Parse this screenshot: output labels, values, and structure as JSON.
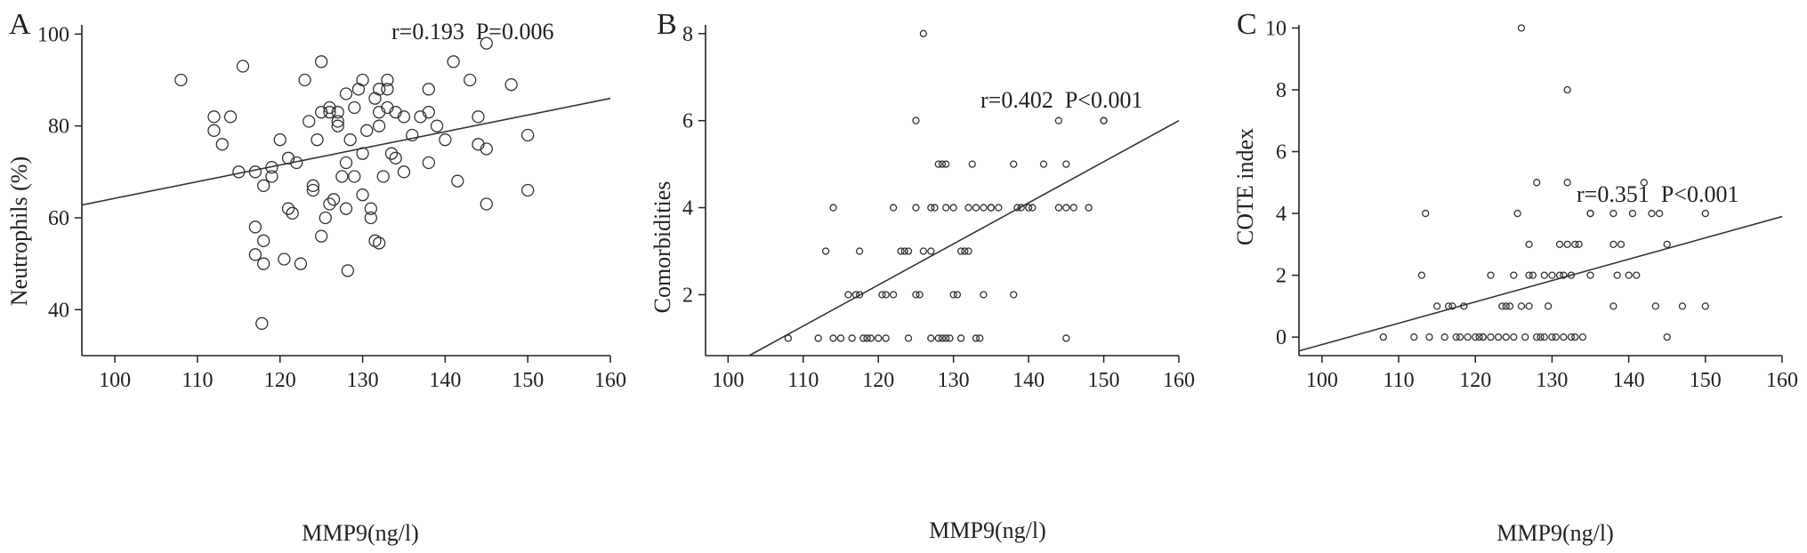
{
  "chart_data": [
    {
      "panel": "A",
      "type": "scatter",
      "xlabel": "MMP9(ng/l)",
      "ylabel": "Neutrophils (%)",
      "xlim": [
        96,
        160
      ],
      "ylim": [
        30,
        102
      ],
      "x_ticks": [
        "100",
        "110",
        "120",
        "130",
        "140",
        "150",
        "160"
      ],
      "y_ticks": [
        "40",
        "60",
        "80",
        "100"
      ],
      "annotation": "r=0.193  P=0.006",
      "trendline": [
        [
          96,
          62.8
        ],
        [
          160,
          86.0
        ]
      ],
      "points": [
        [
          108,
          90
        ],
        [
          112,
          79
        ],
        [
          112,
          82
        ],
        [
          113,
          76
        ],
        [
          114,
          82
        ],
        [
          115,
          70
        ],
        [
          115.5,
          93
        ],
        [
          117,
          70
        ],
        [
          117,
          58
        ],
        [
          117,
          52
        ],
        [
          118,
          67
        ],
        [
          118,
          50
        ],
        [
          118,
          55
        ],
        [
          117.8,
          37
        ],
        [
          119,
          71
        ],
        [
          119,
          69
        ],
        [
          120,
          77
        ],
        [
          120.5,
          51
        ],
        [
          121,
          73
        ],
        [
          121,
          62
        ],
        [
          121.5,
          61
        ],
        [
          122,
          72
        ],
        [
          122.5,
          50
        ],
        [
          123,
          90
        ],
        [
          123.5,
          81
        ],
        [
          124,
          66
        ],
        [
          124,
          67
        ],
        [
          124.5,
          77
        ],
        [
          125,
          94
        ],
        [
          125,
          83
        ],
        [
          125,
          56
        ],
        [
          125.5,
          60
        ],
        [
          126,
          84
        ],
        [
          126,
          83
        ],
        [
          126,
          63
        ],
        [
          126.5,
          64
        ],
        [
          127,
          80
        ],
        [
          127,
          83
        ],
        [
          127,
          81
        ],
        [
          127.5,
          69
        ],
        [
          128,
          62
        ],
        [
          128,
          87
        ],
        [
          128,
          72
        ],
        [
          128.2,
          48.5
        ],
        [
          128.5,
          77
        ],
        [
          129,
          84
        ],
        [
          129,
          69
        ],
        [
          129.5,
          88
        ],
        [
          130,
          90
        ],
        [
          130,
          74
        ],
        [
          130,
          65
        ],
        [
          130.5,
          79
        ],
        [
          131,
          62
        ],
        [
          131,
          60
        ],
        [
          131.5,
          55
        ],
        [
          131.5,
          86
        ],
        [
          132,
          88
        ],
        [
          132,
          80
        ],
        [
          132,
          83
        ],
        [
          132,
          54.5
        ],
        [
          132.5,
          69
        ],
        [
          133,
          84
        ],
        [
          133,
          90
        ],
        [
          133,
          88
        ],
        [
          133.5,
          74
        ],
        [
          134,
          83
        ],
        [
          134,
          73
        ],
        [
          135,
          70
        ],
        [
          135,
          82
        ],
        [
          136,
          78
        ],
        [
          137,
          82
        ],
        [
          138,
          83
        ],
        [
          138,
          72
        ],
        [
          138,
          88
        ],
        [
          139,
          80
        ],
        [
          140,
          77
        ],
        [
          141,
          94
        ],
        [
          141.5,
          68
        ],
        [
          143,
          90
        ],
        [
          144,
          82
        ],
        [
          144,
          76
        ],
        [
          145,
          98
        ],
        [
          145,
          75
        ],
        [
          145,
          63
        ],
        [
          148,
          89
        ],
        [
          150,
          78
        ],
        [
          150,
          66
        ]
      ]
    },
    {
      "panel": "B",
      "type": "scatter",
      "xlabel": "MMP9(ng/l)",
      "ylabel": "Comorbidities",
      "xlim": [
        97,
        160
      ],
      "ylim": [
        0.6,
        8.2
      ],
      "x_ticks": [
        "100",
        "110",
        "120",
        "130",
        "140",
        "150",
        "160"
      ],
      "y_ticks": [
        "2",
        "4",
        "6",
        "8"
      ],
      "annotation": "r=0.402  P<0.001",
      "trendline": [
        [
          102.8,
          0.6
        ],
        [
          160,
          6.0
        ]
      ],
      "points": [
        [
          108,
          1
        ],
        [
          112,
          1
        ],
        [
          113,
          3
        ],
        [
          114,
          4
        ],
        [
          114,
          1
        ],
        [
          115,
          1
        ],
        [
          116,
          2
        ],
        [
          116.5,
          1
        ],
        [
          117,
          2
        ],
        [
          117.5,
          3
        ],
        [
          117.5,
          2
        ],
        [
          118,
          1
        ],
        [
          118.5,
          1
        ],
        [
          119,
          1
        ],
        [
          120,
          1
        ],
        [
          120.5,
          2
        ],
        [
          121,
          1
        ],
        [
          121,
          2
        ],
        [
          122,
          2
        ],
        [
          122,
          4
        ],
        [
          123,
          3
        ],
        [
          123.5,
          3
        ],
        [
          124,
          1
        ],
        [
          124,
          3
        ],
        [
          125,
          2
        ],
        [
          125,
          4
        ],
        [
          125,
          6
        ],
        [
          125.5,
          2
        ],
        [
          126,
          3
        ],
        [
          126,
          8
        ],
        [
          127,
          1
        ],
        [
          127,
          3
        ],
        [
          127,
          4
        ],
        [
          127.5,
          4
        ],
        [
          128,
          1
        ],
        [
          128,
          5
        ],
        [
          128.5,
          1
        ],
        [
          128.5,
          5
        ],
        [
          129,
          1
        ],
        [
          129,
          4
        ],
        [
          129,
          5
        ],
        [
          129.5,
          1
        ],
        [
          130,
          2
        ],
        [
          130,
          4
        ],
        [
          130.5,
          2
        ],
        [
          131,
          3
        ],
        [
          131,
          1
        ],
        [
          131.5,
          3
        ],
        [
          132,
          3
        ],
        [
          132,
          4
        ],
        [
          132.5,
          5
        ],
        [
          133,
          1
        ],
        [
          133,
          4
        ],
        [
          133.5,
          1
        ],
        [
          134,
          4
        ],
        [
          134,
          2
        ],
        [
          135,
          4
        ],
        [
          135,
          4
        ],
        [
          136,
          4
        ],
        [
          138,
          5
        ],
        [
          138,
          2
        ],
        [
          138.5,
          4
        ],
        [
          139,
          4
        ],
        [
          140,
          4
        ],
        [
          140.5,
          4
        ],
        [
          142,
          5
        ],
        [
          144,
          4
        ],
        [
          144,
          6
        ],
        [
          145,
          5
        ],
        [
          145,
          4
        ],
        [
          145,
          1
        ],
        [
          146,
          4
        ],
        [
          148,
          4
        ],
        [
          150,
          6
        ],
        [
          150,
          6
        ]
      ]
    },
    {
      "panel": "C",
      "type": "scatter",
      "xlabel": "MMP9(ng/l)",
      "ylabel": "COTE index",
      "xlim": [
        97,
        160
      ],
      "ylim": [
        -0.6,
        10.1
      ],
      "x_ticks": [
        "100",
        "110",
        "120",
        "130",
        "140",
        "150",
        "160"
      ],
      "y_ticks": [
        "0",
        "2",
        "4",
        "6",
        "8",
        "10"
      ],
      "annotation": "r=0.351  P<0.001",
      "trendline": [
        [
          97,
          -0.45
        ],
        [
          160,
          3.9
        ]
      ],
      "points": [
        [
          108,
          0
        ],
        [
          112,
          0
        ],
        [
          113,
          2
        ],
        [
          113.5,
          4
        ],
        [
          114,
          0
        ],
        [
          115,
          1
        ],
        [
          116,
          0
        ],
        [
          116.5,
          1
        ],
        [
          117,
          1
        ],
        [
          117.5,
          0
        ],
        [
          118,
          0
        ],
        [
          118.5,
          1
        ],
        [
          119,
          0
        ],
        [
          120,
          0
        ],
        [
          120.5,
          0
        ],
        [
          121,
          0
        ],
        [
          121,
          0
        ],
        [
          122,
          0
        ],
        [
          122,
          2
        ],
        [
          123,
          0
        ],
        [
          123.5,
          1
        ],
        [
          124,
          0
        ],
        [
          124,
          1
        ],
        [
          124.5,
          1
        ],
        [
          125,
          0
        ],
        [
          125,
          2
        ],
        [
          125.5,
          4
        ],
        [
          126,
          1
        ],
        [
          126,
          10
        ],
        [
          126.5,
          0
        ],
        [
          127,
          1
        ],
        [
          127,
          2
        ],
        [
          127,
          3
        ],
        [
          127.5,
          2
        ],
        [
          128,
          0
        ],
        [
          128,
          5
        ],
        [
          128.5,
          0
        ],
        [
          129,
          0
        ],
        [
          129,
          2
        ],
        [
          129.5,
          1
        ],
        [
          130,
          0
        ],
        [
          130,
          2
        ],
        [
          130.5,
          0
        ],
        [
          131,
          2
        ],
        [
          131,
          3
        ],
        [
          131.5,
          0
        ],
        [
          131.5,
          2
        ],
        [
          132,
          3
        ],
        [
          132,
          5
        ],
        [
          132,
          8
        ],
        [
          132.5,
          0
        ],
        [
          132.5,
          2
        ],
        [
          133,
          3
        ],
        [
          133,
          0
        ],
        [
          133.5,
          3
        ],
        [
          134,
          0
        ],
        [
          135,
          4
        ],
        [
          135,
          2
        ],
        [
          135,
          4
        ],
        [
          138,
          1
        ],
        [
          138,
          3
        ],
        [
          138,
          4
        ],
        [
          138.5,
          2
        ],
        [
          139,
          3
        ],
        [
          140,
          2
        ],
        [
          140.5,
          4
        ],
        [
          141,
          2
        ],
        [
          142,
          5
        ],
        [
          143,
          4
        ],
        [
          143.5,
          1
        ],
        [
          144,
          4
        ],
        [
          145,
          3
        ],
        [
          145,
          0
        ],
        [
          147,
          1
        ],
        [
          150,
          1
        ],
        [
          150,
          4
        ]
      ]
    }
  ]
}
